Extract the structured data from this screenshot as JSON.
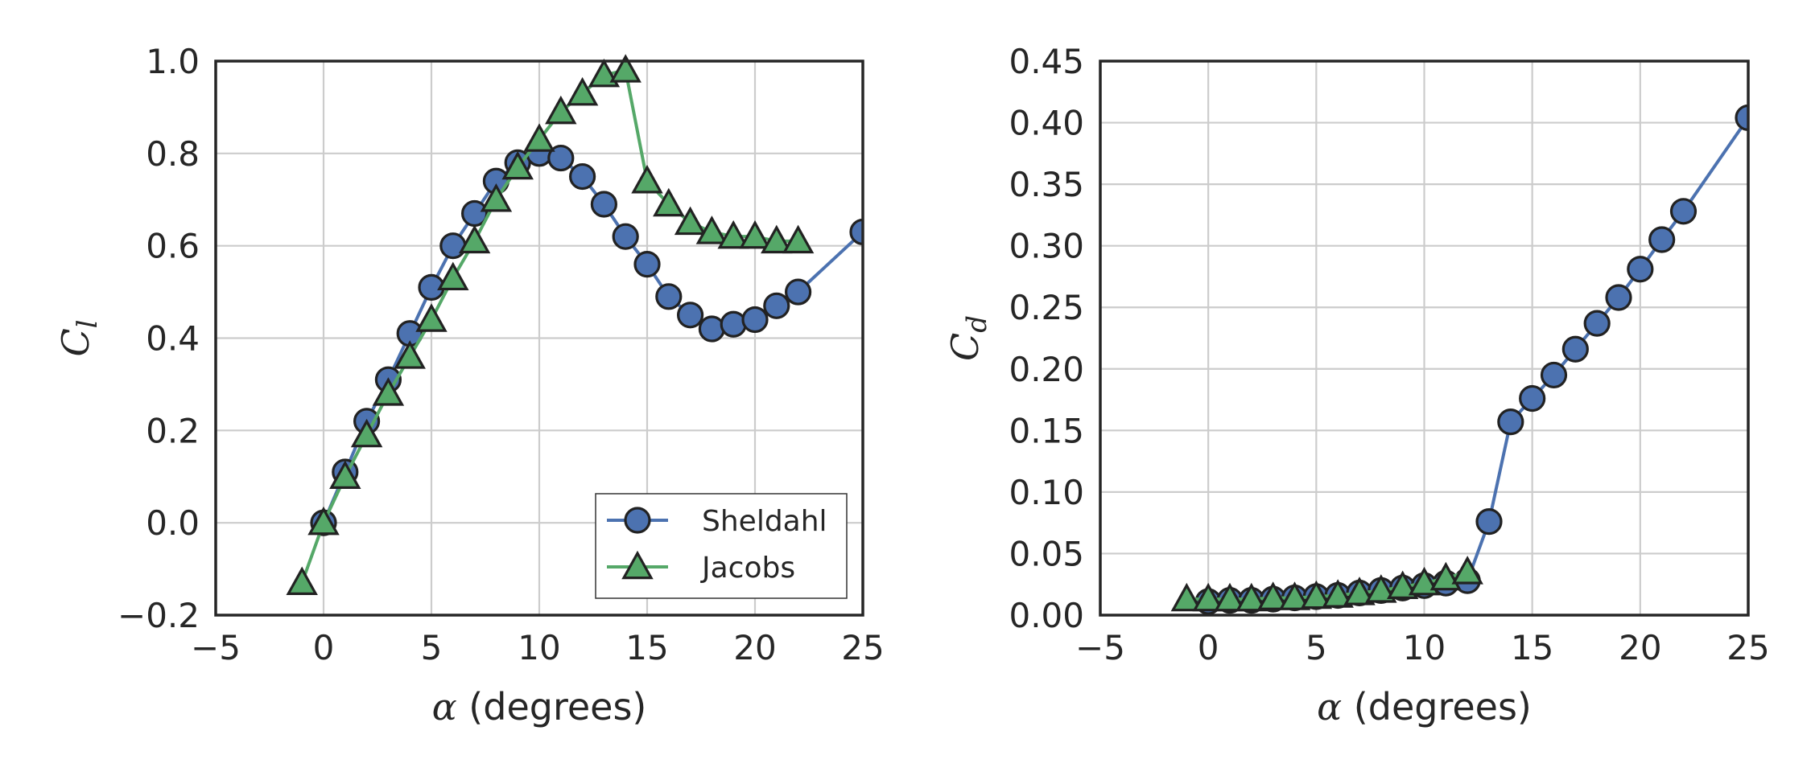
{
  "chart_data": [
    {
      "type": "line",
      "xlabel_symbol": "α",
      "xlabel_rest": " (degrees)",
      "ylabel_main": "C",
      "ylabel_sub": "l",
      "xlim": [
        -5,
        25
      ],
      "ylim": [
        -0.2,
        1.0
      ],
      "xticks": [
        -5,
        0,
        5,
        10,
        15,
        20,
        25
      ],
      "xtick_labels": [
        "−5",
        "0",
        "5",
        "10",
        "15",
        "20",
        "25"
      ],
      "yticks": [
        -0.2,
        0.0,
        0.2,
        0.4,
        0.6,
        0.8,
        1.0
      ],
      "ytick_labels": [
        "−0.2",
        "0.0",
        "0.2",
        "0.4",
        "0.6",
        "0.8",
        "1.0"
      ],
      "grid": true,
      "legend": "lower-right",
      "series": [
        {
          "name": "Sheldahl",
          "marker": "circle",
          "color": "#4C72B0",
          "x": [
            0,
            1,
            2,
            3,
            4,
            5,
            6,
            7,
            8,
            9,
            10,
            11,
            12,
            13,
            14,
            15,
            16,
            17,
            18,
            19,
            20,
            21,
            22,
            25
          ],
          "y": [
            0.0,
            0.11,
            0.22,
            0.31,
            0.41,
            0.51,
            0.6,
            0.67,
            0.74,
            0.78,
            0.8,
            0.79,
            0.75,
            0.69,
            0.62,
            0.56,
            0.49,
            0.45,
            0.42,
            0.43,
            0.44,
            0.47,
            0.5,
            0.63
          ]
        },
        {
          "name": "Jacobs",
          "marker": "triangle",
          "color": "#55A868",
          "x": [
            -1,
            0,
            1,
            2,
            3,
            4,
            5,
            6,
            7,
            8,
            9,
            10,
            11,
            12,
            13,
            14,
            15,
            16,
            17,
            18,
            19,
            20,
            21,
            22
          ],
          "y": [
            -0.13,
            0.0,
            0.1,
            0.19,
            0.28,
            0.36,
            0.44,
            0.53,
            0.61,
            0.7,
            0.77,
            0.83,
            0.89,
            0.93,
            0.97,
            0.98,
            0.74,
            0.69,
            0.65,
            0.63,
            0.62,
            0.62,
            0.61,
            0.61
          ]
        }
      ]
    },
    {
      "type": "line",
      "xlabel_symbol": "α",
      "xlabel_rest": " (degrees)",
      "ylabel_main": "C",
      "ylabel_sub": "d",
      "xlim": [
        -5,
        25
      ],
      "ylim": [
        0.0,
        0.45
      ],
      "xticks": [
        -5,
        0,
        5,
        10,
        15,
        20,
        25
      ],
      "xtick_labels": [
        "−5",
        "0",
        "5",
        "10",
        "15",
        "20",
        "25"
      ],
      "yticks": [
        0.0,
        0.05,
        0.1,
        0.15,
        0.2,
        0.25,
        0.3,
        0.35,
        0.4,
        0.45
      ],
      "ytick_labels": [
        "0.00",
        "0.05",
        "0.10",
        "0.15",
        "0.20",
        "0.25",
        "0.30",
        "0.35",
        "0.40",
        "0.45"
      ],
      "grid": true,
      "series": [
        {
          "name": "Sheldahl",
          "marker": "circle",
          "color": "#4C72B0",
          "x": [
            0,
            1,
            2,
            3,
            4,
            5,
            6,
            7,
            8,
            9,
            10,
            11,
            12,
            13,
            14,
            15,
            16,
            17,
            18,
            19,
            20,
            21,
            22,
            25
          ],
          "y": [
            0.011,
            0.012,
            0.012,
            0.013,
            0.014,
            0.015,
            0.016,
            0.018,
            0.02,
            0.022,
            0.024,
            0.026,
            0.028,
            0.076,
            0.157,
            0.176,
            0.195,
            0.216,
            0.237,
            0.258,
            0.281,
            0.305,
            0.328,
            0.404
          ]
        },
        {
          "name": "Jacobs",
          "marker": "triangle",
          "color": "#55A868",
          "x": [
            -1,
            0,
            1,
            2,
            3,
            4,
            5,
            6,
            7,
            8,
            9,
            10,
            11,
            12
          ],
          "y": [
            0.013,
            0.013,
            0.013,
            0.013,
            0.014,
            0.014,
            0.015,
            0.016,
            0.018,
            0.02,
            0.023,
            0.026,
            0.03,
            0.035
          ]
        }
      ]
    }
  ]
}
